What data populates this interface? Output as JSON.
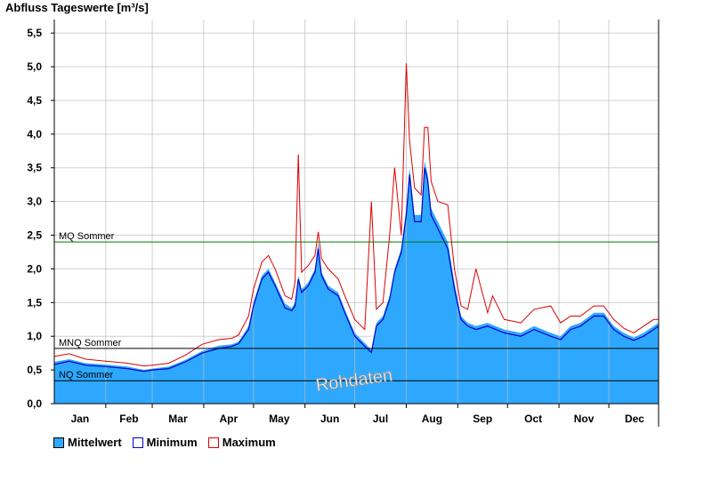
{
  "title": "Abfluss Tageswerte [m³/s]",
  "watermark": "Rohdaten",
  "colors": {
    "mean_fill": "#2ea8ff",
    "minimum_line": "#0000cc",
    "maximum_line": "#dd0000",
    "mq_line": "#007700",
    "ref_line": "#000000",
    "grid": "#d0d0d0",
    "month_grid": "#bbbbbb"
  },
  "legend": [
    {
      "label": "Mittelwert",
      "color": "#2ea8ff"
    },
    {
      "label": "Minimum",
      "color": "#ffffff",
      "border": "#0000cc"
    },
    {
      "label": "Maximum",
      "color": "#ffffff",
      "border": "#dd0000"
    }
  ],
  "chart_data": {
    "type": "area",
    "title": "Abfluss Tageswerte [m³/s]",
    "xlabel": "",
    "ylabel": "",
    "ylim": [
      0,
      5.7
    ],
    "yticks": [
      "0,0",
      "0,5",
      "1,0",
      "1,5",
      "2,0",
      "2,5",
      "3,0",
      "3,5",
      "4,0",
      "4,5",
      "5,0",
      "5,5"
    ],
    "ytick_values": [
      0,
      0.5,
      1.0,
      1.5,
      2.0,
      2.5,
      3.0,
      3.5,
      4.0,
      4.5,
      5.0,
      5.5
    ],
    "months": [
      "Jan",
      "Feb",
      "Mar",
      "Apr",
      "May",
      "Jun",
      "Jul",
      "Aug",
      "Sep",
      "Oct",
      "Nov",
      "Dec"
    ],
    "xlim_days": [
      1,
      365
    ],
    "grid": true,
    "legend_position": "bottom-left",
    "reference_lines": [
      {
        "label": "MQ Sommer",
        "value": 2.4
      },
      {
        "label": "MNQ Sommer",
        "value": 0.82
      },
      {
        "label": "NQ Sommer",
        "value": 0.34
      }
    ],
    "series": [
      {
        "name": "Mittelwert",
        "kind": "area",
        "points": [
          [
            1,
            0.62
          ],
          [
            10,
            0.66
          ],
          [
            20,
            0.6
          ],
          [
            32,
            0.58
          ],
          [
            45,
            0.55
          ],
          [
            55,
            0.5
          ],
          [
            60,
            0.52
          ],
          [
            70,
            0.55
          ],
          [
            80,
            0.65
          ],
          [
            90,
            0.78
          ],
          [
            100,
            0.86
          ],
          [
            108,
            0.88
          ],
          [
            112,
            0.92
          ],
          [
            118,
            1.15
          ],
          [
            121,
            1.5
          ],
          [
            126,
            1.9
          ],
          [
            130,
            2.0
          ],
          [
            134,
            1.8
          ],
          [
            140,
            1.48
          ],
          [
            144,
            1.42
          ],
          [
            146,
            1.5
          ],
          [
            148,
            1.9
          ],
          [
            150,
            1.7
          ],
          [
            154,
            1.8
          ],
          [
            158,
            2.0
          ],
          [
            160,
            2.4
          ],
          [
            162,
            1.95
          ],
          [
            166,
            1.75
          ],
          [
            172,
            1.65
          ],
          [
            176,
            1.4
          ],
          [
            182,
            1.05
          ],
          [
            188,
            0.9
          ],
          [
            192,
            0.8
          ],
          [
            195,
            1.2
          ],
          [
            199,
            1.3
          ],
          [
            203,
            1.6
          ],
          [
            206,
            2.0
          ],
          [
            210,
            2.3
          ],
          [
            213,
            2.9
          ],
          [
            215,
            3.5
          ],
          [
            218,
            2.8
          ],
          [
            222,
            2.8
          ],
          [
            224,
            3.6
          ],
          [
            226,
            3.4
          ],
          [
            228,
            2.9
          ],
          [
            232,
            2.7
          ],
          [
            238,
            2.4
          ],
          [
            242,
            1.8
          ],
          [
            246,
            1.3
          ],
          [
            250,
            1.2
          ],
          [
            255,
            1.15
          ],
          [
            262,
            1.2
          ],
          [
            272,
            1.1
          ],
          [
            282,
            1.05
          ],
          [
            290,
            1.15
          ],
          [
            300,
            1.05
          ],
          [
            306,
            1.0
          ],
          [
            312,
            1.15
          ],
          [
            318,
            1.2
          ],
          [
            326,
            1.35
          ],
          [
            332,
            1.35
          ],
          [
            338,
            1.15
          ],
          [
            344,
            1.05
          ],
          [
            350,
            0.98
          ],
          [
            356,
            1.05
          ],
          [
            362,
            1.15
          ],
          [
            365,
            1.2
          ]
        ]
      },
      {
        "name": "Minimum",
        "kind": "line",
        "points": [
          [
            1,
            0.58
          ],
          [
            10,
            0.63
          ],
          [
            20,
            0.57
          ],
          [
            32,
            0.55
          ],
          [
            45,
            0.52
          ],
          [
            55,
            0.48
          ],
          [
            60,
            0.5
          ],
          [
            70,
            0.52
          ],
          [
            80,
            0.62
          ],
          [
            90,
            0.75
          ],
          [
            100,
            0.82
          ],
          [
            108,
            0.85
          ],
          [
            112,
            0.89
          ],
          [
            118,
            1.1
          ],
          [
            121,
            1.45
          ],
          [
            126,
            1.85
          ],
          [
            130,
            1.95
          ],
          [
            134,
            1.75
          ],
          [
            140,
            1.42
          ],
          [
            144,
            1.38
          ],
          [
            146,
            1.45
          ],
          [
            148,
            1.85
          ],
          [
            150,
            1.65
          ],
          [
            154,
            1.75
          ],
          [
            158,
            1.95
          ],
          [
            160,
            2.3
          ],
          [
            162,
            1.9
          ],
          [
            166,
            1.7
          ],
          [
            172,
            1.6
          ],
          [
            176,
            1.35
          ],
          [
            182,
            1.0
          ],
          [
            188,
            0.85
          ],
          [
            192,
            0.76
          ],
          [
            195,
            1.15
          ],
          [
            199,
            1.25
          ],
          [
            203,
            1.55
          ],
          [
            206,
            1.95
          ],
          [
            210,
            2.25
          ],
          [
            213,
            2.8
          ],
          [
            215,
            3.4
          ],
          [
            218,
            2.7
          ],
          [
            222,
            2.7
          ],
          [
            224,
            3.5
          ],
          [
            226,
            3.3
          ],
          [
            228,
            2.8
          ],
          [
            232,
            2.6
          ],
          [
            238,
            2.3
          ],
          [
            242,
            1.7
          ],
          [
            246,
            1.25
          ],
          [
            250,
            1.15
          ],
          [
            255,
            1.1
          ],
          [
            262,
            1.15
          ],
          [
            272,
            1.05
          ],
          [
            282,
            1.0
          ],
          [
            290,
            1.1
          ],
          [
            300,
            1.0
          ],
          [
            306,
            0.95
          ],
          [
            312,
            1.1
          ],
          [
            318,
            1.15
          ],
          [
            326,
            1.3
          ],
          [
            332,
            1.3
          ],
          [
            338,
            1.1
          ],
          [
            344,
            1.0
          ],
          [
            350,
            0.94
          ],
          [
            356,
            1.0
          ],
          [
            362,
            1.1
          ],
          [
            365,
            1.15
          ]
        ]
      },
      {
        "name": "Maximum",
        "kind": "line",
        "points": [
          [
            1,
            0.7
          ],
          [
            10,
            0.74
          ],
          [
            20,
            0.66
          ],
          [
            32,
            0.63
          ],
          [
            45,
            0.6
          ],
          [
            55,
            0.56
          ],
          [
            60,
            0.57
          ],
          [
            70,
            0.6
          ],
          [
            80,
            0.72
          ],
          [
            90,
            0.88
          ],
          [
            100,
            0.95
          ],
          [
            108,
            0.97
          ],
          [
            112,
            1.02
          ],
          [
            118,
            1.3
          ],
          [
            121,
            1.7
          ],
          [
            126,
            2.1
          ],
          [
            130,
            2.2
          ],
          [
            134,
            2.0
          ],
          [
            140,
            1.6
          ],
          [
            144,
            1.55
          ],
          [
            146,
            1.8
          ],
          [
            148,
            3.7
          ],
          [
            150,
            1.95
          ],
          [
            154,
            2.05
          ],
          [
            158,
            2.2
          ],
          [
            160,
            2.55
          ],
          [
            162,
            2.15
          ],
          [
            166,
            2.0
          ],
          [
            172,
            1.85
          ],
          [
            176,
            1.6
          ],
          [
            182,
            1.25
          ],
          [
            188,
            1.1
          ],
          [
            192,
            3.0
          ],
          [
            195,
            1.4
          ],
          [
            199,
            1.5
          ],
          [
            203,
            2.5
          ],
          [
            206,
            3.5
          ],
          [
            210,
            2.5
          ],
          [
            213,
            5.05
          ],
          [
            215,
            3.9
          ],
          [
            218,
            3.2
          ],
          [
            222,
            3.1
          ],
          [
            224,
            4.1
          ],
          [
            226,
            4.1
          ],
          [
            228,
            3.3
          ],
          [
            232,
            3.0
          ],
          [
            238,
            2.95
          ],
          [
            242,
            2.0
          ],
          [
            246,
            1.45
          ],
          [
            250,
            1.4
          ],
          [
            255,
            2.0
          ],
          [
            262,
            1.35
          ],
          [
            265,
            1.6
          ],
          [
            272,
            1.25
          ],
          [
            282,
            1.2
          ],
          [
            290,
            1.4
          ],
          [
            300,
            1.45
          ],
          [
            306,
            1.2
          ],
          [
            312,
            1.3
          ],
          [
            318,
            1.3
          ],
          [
            326,
            1.45
          ],
          [
            332,
            1.45
          ],
          [
            338,
            1.25
          ],
          [
            344,
            1.12
          ],
          [
            350,
            1.05
          ],
          [
            356,
            1.15
          ],
          [
            362,
            1.25
          ],
          [
            365,
            1.25
          ]
        ]
      }
    ]
  }
}
